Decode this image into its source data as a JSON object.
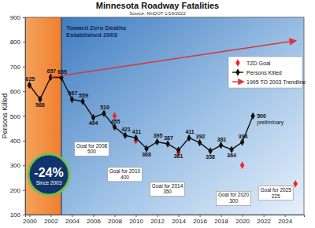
{
  "chart_data": {
    "type": "line",
    "title": "Minnesota Roadway Fatalities",
    "subtitle": "Source: MnDOT 1/19/2022",
    "y_label": "Persons Killed",
    "xlim": [
      1999.6,
      2025.8
    ],
    "xticks": [
      2000,
      2002,
      2004,
      2006,
      2008,
      2010,
      2012,
      2014,
      2016,
      2018,
      2020,
      2022,
      2024
    ],
    "ylim": [
      100,
      900
    ],
    "yticks": [
      100,
      200,
      300,
      400,
      500,
      600,
      700,
      800,
      900
    ],
    "legend": "upper right",
    "series": [
      {
        "name": "TZD Goal",
        "type": "scatter",
        "color": "#e8262b",
        "marker": "diamond",
        "x": [
          2008,
          2010,
          2014,
          2020,
          2025
        ],
        "values": [
          500,
          400,
          350,
          300,
          225
        ],
        "data_labels": true,
        "value_labels": [
          "Goal for 2008\n500",
          "Goal for 2010\n400",
          "Goal for 2014\n350",
          "Goal for 2020\n300",
          "Goal for 2025\n225"
        ]
      },
      {
        "name": "Persons Killed",
        "type": "line",
        "color": "#111111",
        "marker": "diamond",
        "x": [
          2000,
          2001,
          2002,
          2003,
          2004,
          2005,
          2006,
          2007,
          2008,
          2009,
          2010,
          2011,
          2012,
          2013,
          2014,
          2015,
          2016,
          2017,
          2018,
          2019,
          2020,
          2021
        ],
        "values": [
          625,
          568,
          657,
          655,
          567,
          559,
          494,
          510,
          455,
          421,
          411,
          368,
          395,
          387,
          361,
          411,
          392,
          358,
          381,
          364,
          394,
          500
        ],
        "data_labels": true,
        "value_labels": [
          "625",
          "568",
          "657",
          "655",
          "567",
          "559",
          "494",
          "510",
          "455",
          "421",
          "411",
          "368",
          "395",
          "387",
          "361",
          "411",
          "392",
          "358",
          "381",
          "364",
          "394",
          "500\npreliminary"
        ]
      },
      {
        "name": "1995 TO 2003 Trendline",
        "type": "line",
        "color": "#d9363e",
        "line_style": "arrow",
        "x": [
          2002,
          2025
        ],
        "values": [
          657,
          805
        ]
      }
    ],
    "annotations": [
      {
        "text": "Toward Zero Deaths\nEstablished 2003",
        "x": 2003
      }
    ],
    "callout": {
      "value": -24,
      "label": "-24%",
      "text": "Since 2003"
    }
  }
}
